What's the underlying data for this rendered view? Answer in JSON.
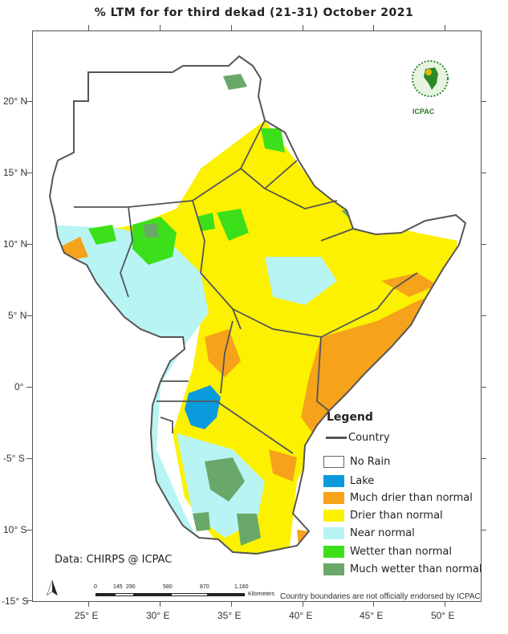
{
  "title": "% LTM for  for third dekad (21-31) October 2021",
  "axes": {
    "lat_labels": [
      "20° N",
      "15° N",
      "10° N",
      "5° N",
      "0°",
      "-5° S",
      "10° S",
      "-15° S"
    ],
    "lon_labels": [
      "25° E",
      "30° E",
      "35° E",
      "40° E",
      "45° E",
      "50° E"
    ]
  },
  "legend": {
    "title": "Legend",
    "country_label": "Country",
    "items": [
      {
        "label": "No Rain",
        "color": "#ffffff"
      },
      {
        "label": "Lake",
        "color": "#0a9bdc"
      },
      {
        "label": "Much drier than normal",
        "color": "#f7a21b"
      },
      {
        "label": "Drier than normal",
        "color": "#fbf100"
      },
      {
        "label": "Near normal",
        "color": "#b8f4f4"
      },
      {
        "label": "Wetter than normal",
        "color": "#3ce01a"
      },
      {
        "label": "Much wetter than normal",
        "color": "#6aa86a"
      }
    ]
  },
  "source": "Data: CHIRPS @ ICPAC",
  "disclaimer": "Country boundaries are not officially endorsed by ICPAC",
  "scale": {
    "labels": [
      "0",
      "145",
      "290",
      "580",
      "870",
      "1,160"
    ],
    "unit": "Kilometers"
  },
  "logo": {
    "org": "ICPAC",
    "badge": "IGAD"
  },
  "north_arrow_icon": "north-arrow-icon"
}
